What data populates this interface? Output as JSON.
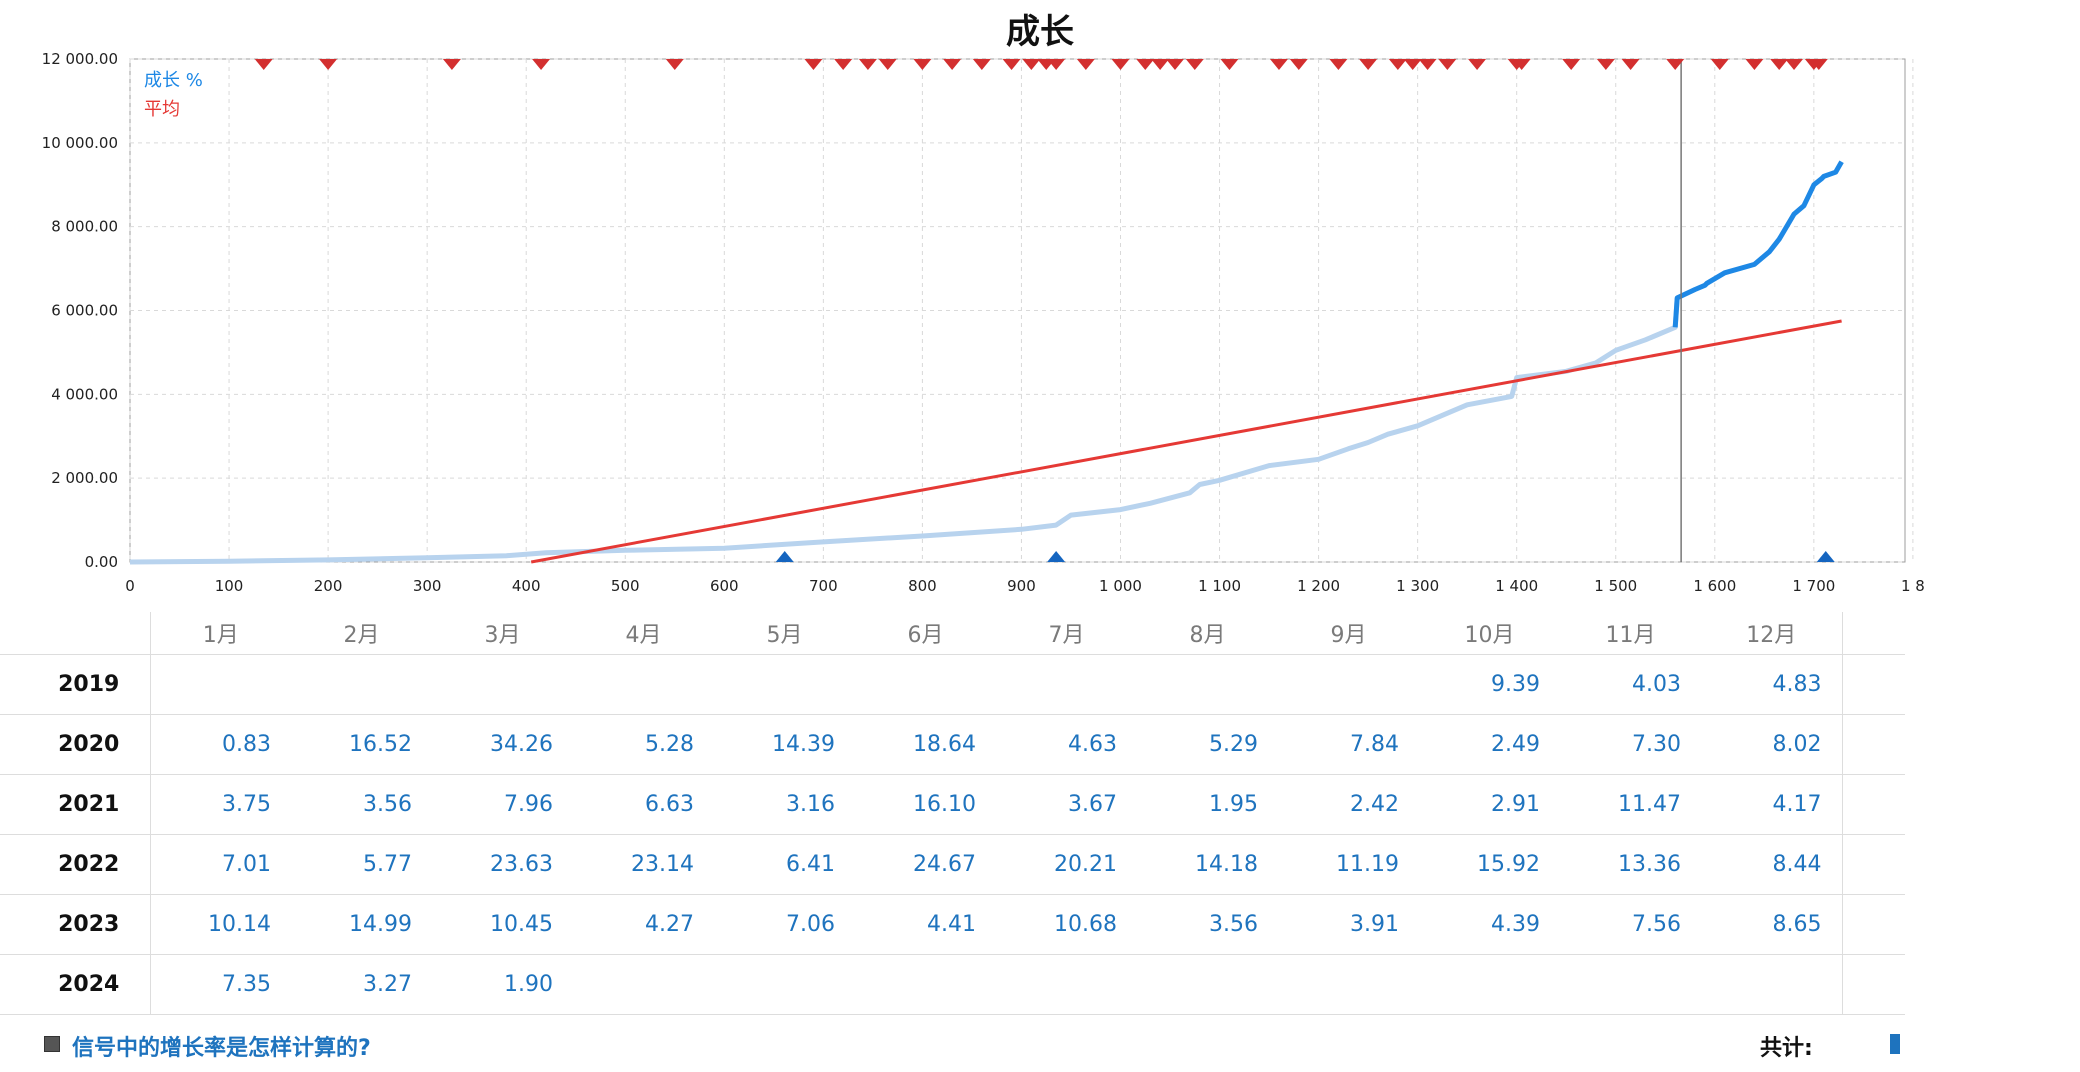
{
  "chart_data": {
    "type": "line",
    "title": "成长",
    "xlabel": "",
    "ylabel": "",
    "xlim": [
      0,
      1800
    ],
    "ylim": [
      0,
      12000
    ],
    "x_ticks": [
      "0",
      "100",
      "200",
      "300",
      "400",
      "500",
      "600",
      "700",
      "800",
      "900",
      "1 000",
      "1 100",
      "1 200",
      "1 300",
      "1 400",
      "1 500",
      "1 600",
      "1 700",
      "1 8"
    ],
    "y_ticks": [
      "0.00",
      "2 000.00",
      "4 000.00",
      "6 000.00",
      "8 000.00",
      "10 000.00",
      "12 000.00"
    ],
    "grid": true,
    "legend_position": "top-left",
    "series": [
      {
        "name": "成长 %",
        "color": "#1e88e5",
        "x": [
          0,
          100,
          200,
          300,
          380,
          420,
          500,
          600,
          700,
          800,
          900,
          935,
          950,
          1000,
          1030,
          1070,
          1080,
          1100,
          1150,
          1200,
          1230,
          1250,
          1270,
          1300,
          1330,
          1350,
          1395,
          1400,
          1450,
          1480,
          1500,
          1530,
          1560,
          1562,
          1580,
          1590,
          1592,
          1610,
          1640,
          1655,
          1665,
          1680,
          1690,
          1700,
          1708,
          1710,
          1722,
          1728
        ],
        "y": [
          0,
          20,
          50,
          100,
          150,
          220,
          280,
          330,
          480,
          620,
          780,
          880,
          1120,
          1250,
          1400,
          1650,
          1850,
          1950,
          2300,
          2450,
          2700,
          2850,
          3050,
          3250,
          3550,
          3750,
          3950,
          4400,
          4550,
          4750,
          5050,
          5300,
          5600,
          6300,
          6500,
          6600,
          6650,
          6900,
          7100,
          7400,
          7700,
          8300,
          8500,
          9000,
          9150,
          9200,
          9300,
          9550
        ]
      },
      {
        "name": "平均",
        "color": "#e53935",
        "x": [
          405,
          1728
        ],
        "y": [
          0,
          5750
        ]
      }
    ],
    "marker_line_x": 1566,
    "down_markers_x": [
      135,
      200,
      325,
      415,
      550,
      690,
      720,
      745,
      765,
      800,
      830,
      860,
      890,
      910,
      925,
      935,
      965,
      1000,
      1025,
      1040,
      1055,
      1075,
      1110,
      1160,
      1180,
      1220,
      1250,
      1280,
      1295,
      1310,
      1330,
      1360,
      1400,
      1405,
      1455,
      1490,
      1515,
      1560,
      1605,
      1640,
      1665,
      1680,
      1700,
      1705
    ],
    "up_markers_x": [
      661,
      935,
      1712
    ]
  },
  "table": {
    "months": [
      "1月",
      "2月",
      "3月",
      "4月",
      "5月",
      "6月",
      "7月",
      "8月",
      "9月",
      "10月",
      "11月",
      "12月"
    ],
    "rows": [
      {
        "year": "2019",
        "values": [
          "",
          "",
          "",
          "",
          "",
          "",
          "",
          "",
          "",
          "9.39",
          "4.03",
          "4.83"
        ]
      },
      {
        "year": "2020",
        "values": [
          "0.83",
          "16.52",
          "34.26",
          "5.28",
          "14.39",
          "18.64",
          "4.63",
          "5.29",
          "7.84",
          "2.49",
          "7.30",
          "8.02"
        ]
      },
      {
        "year": "2021",
        "values": [
          "3.75",
          "3.56",
          "7.96",
          "6.63",
          "3.16",
          "16.10",
          "3.67",
          "1.95",
          "2.42",
          "2.91",
          "11.47",
          "4.17"
        ]
      },
      {
        "year": "2022",
        "values": [
          "7.01",
          "5.77",
          "23.63",
          "23.14",
          "6.41",
          "24.67",
          "20.21",
          "14.18",
          "11.19",
          "15.92",
          "13.36",
          "8.44"
        ]
      },
      {
        "year": "2023",
        "values": [
          "10.14",
          "14.99",
          "10.45",
          "4.27",
          "7.06",
          "4.41",
          "10.68",
          "3.56",
          "3.91",
          "4.39",
          "7.56",
          "8.65"
        ]
      },
      {
        "year": "2024",
        "values": [
          "7.35",
          "3.27",
          "1.90",
          "",
          "",
          "",
          "",
          "",
          "",
          "",
          "",
          ""
        ]
      }
    ]
  },
  "footer": {
    "link_text": "信号中的增长率是怎样计算的?",
    "total_label": "共计:"
  }
}
